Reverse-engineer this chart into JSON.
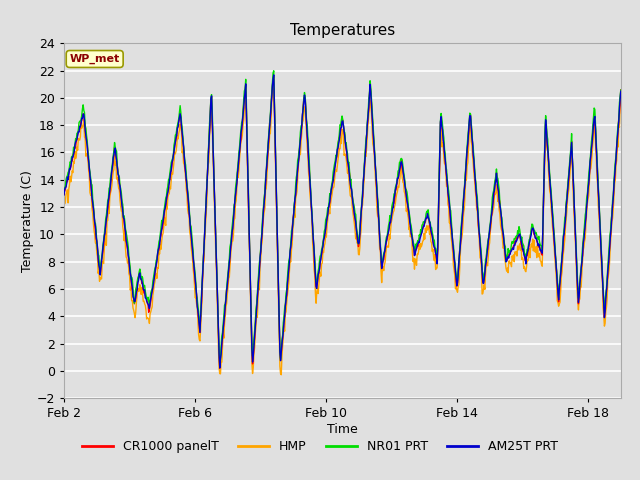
{
  "title": "Temperatures",
  "xlabel": "Time",
  "ylabel": "Temperature (C)",
  "ylim": [
    -2,
    24
  ],
  "yticks": [
    -2,
    0,
    2,
    4,
    6,
    8,
    10,
    12,
    14,
    16,
    18,
    20,
    22,
    24
  ],
  "plot_bg_color": "#e0e0e0",
  "fig_bg_color": "#e0e0e0",
  "legend_bg_color": "#ffffff",
  "grid_color": "#ffffff",
  "annotation_text": "WP_met",
  "annotation_text_color": "#8B0000",
  "annotation_bg_color": "#ffffcc",
  "annotation_border_color": "#999900",
  "colors": {
    "CR1000 panelT": "#ff0000",
    "HMP": "#ffa500",
    "NR01 PRT": "#00dd00",
    "AM25T PRT": "#0000cc"
  },
  "line_width": 1.0,
  "legend_entries": [
    "CR1000 panelT",
    "HMP",
    "NR01 PRT",
    "AM25T PRT"
  ],
  "xtick_positions": [
    0,
    4,
    8,
    12,
    16
  ],
  "xtick_labels": [
    "Feb 2",
    "Feb 6",
    "Feb 10",
    "Feb 14",
    "Feb 18"
  ],
  "xlim": [
    0,
    17
  ]
}
